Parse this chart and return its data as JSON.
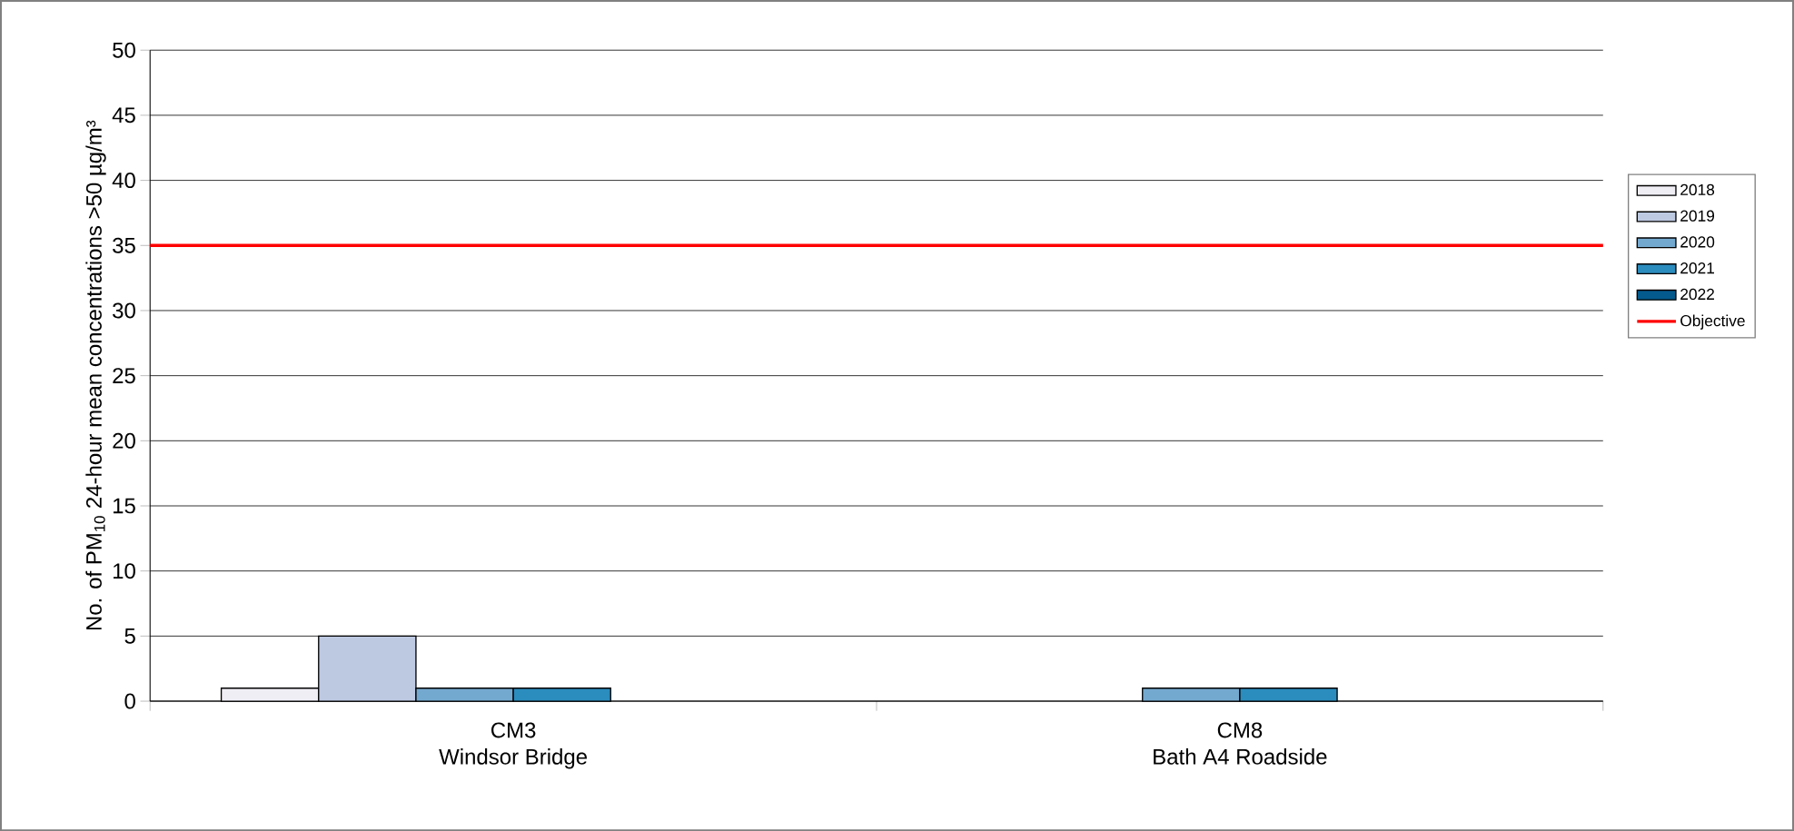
{
  "chart_data": {
    "type": "bar",
    "ylabel": "No. of PM$_{10}$ 24-hour mean concentrations >50 µg/m³",
    "categories": [
      "CM3\nWindsor Bridge",
      "CM8\nBath A4 Roadside"
    ],
    "series": [
      {
        "name": "2018",
        "color": "#f0eef5",
        "values": [
          1,
          null
        ]
      },
      {
        "name": "2019",
        "color": "#bdc9e1",
        "values": [
          5,
          null
        ]
      },
      {
        "name": "2020",
        "color": "#74a9cf",
        "values": [
          1,
          1
        ]
      },
      {
        "name": "2021",
        "color": "#2b8cbe",
        "values": [
          1,
          1
        ]
      },
      {
        "name": "2022",
        "color": "#045a8d",
        "values": [
          null,
          null
        ]
      }
    ],
    "ylim": [
      0,
      50
    ],
    "yticks": [
      0,
      5,
      10,
      15,
      20,
      25,
      30,
      35,
      40,
      45,
      50
    ],
    "grid": "y",
    "legend": "right",
    "ref_lines": [
      {
        "axis": "y",
        "value": 35,
        "label": "Objective",
        "color": "#ff0000"
      }
    ]
  }
}
